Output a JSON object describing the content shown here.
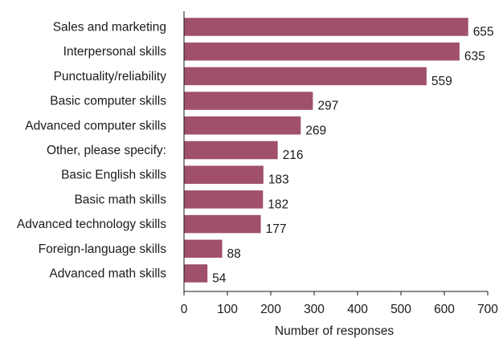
{
  "chart_data": {
    "type": "bar",
    "orientation": "horizontal",
    "categories": [
      "Sales and marketing",
      "Interpersonal skills",
      "Punctuality/reliability",
      "Basic computer skills",
      "Advanced computer skills",
      "Other, please specify:",
      "Basic English skills",
      "Basic math skills",
      "Advanced technology skills",
      "Foreign-language skills",
      "Advanced math skills"
    ],
    "values": [
      655,
      635,
      559,
      297,
      269,
      216,
      183,
      182,
      177,
      88,
      54
    ],
    "value_labels": [
      "655",
      "635",
      "559",
      "297",
      "269",
      "216",
      "183",
      "182",
      "177",
      "88",
      "54"
    ],
    "title": "",
    "xlabel": "Number of responses",
    "ylabel": "",
    "xlim": [
      0,
      700
    ],
    "x_ticks": [
      0,
      100,
      200,
      300,
      400,
      500,
      600,
      700
    ],
    "x_tick_labels": [
      "0",
      "100",
      "200",
      "300",
      "400",
      "500",
      "600",
      "700"
    ],
    "grid": false,
    "legend": "none",
    "bar_color": "#a0506a"
  }
}
